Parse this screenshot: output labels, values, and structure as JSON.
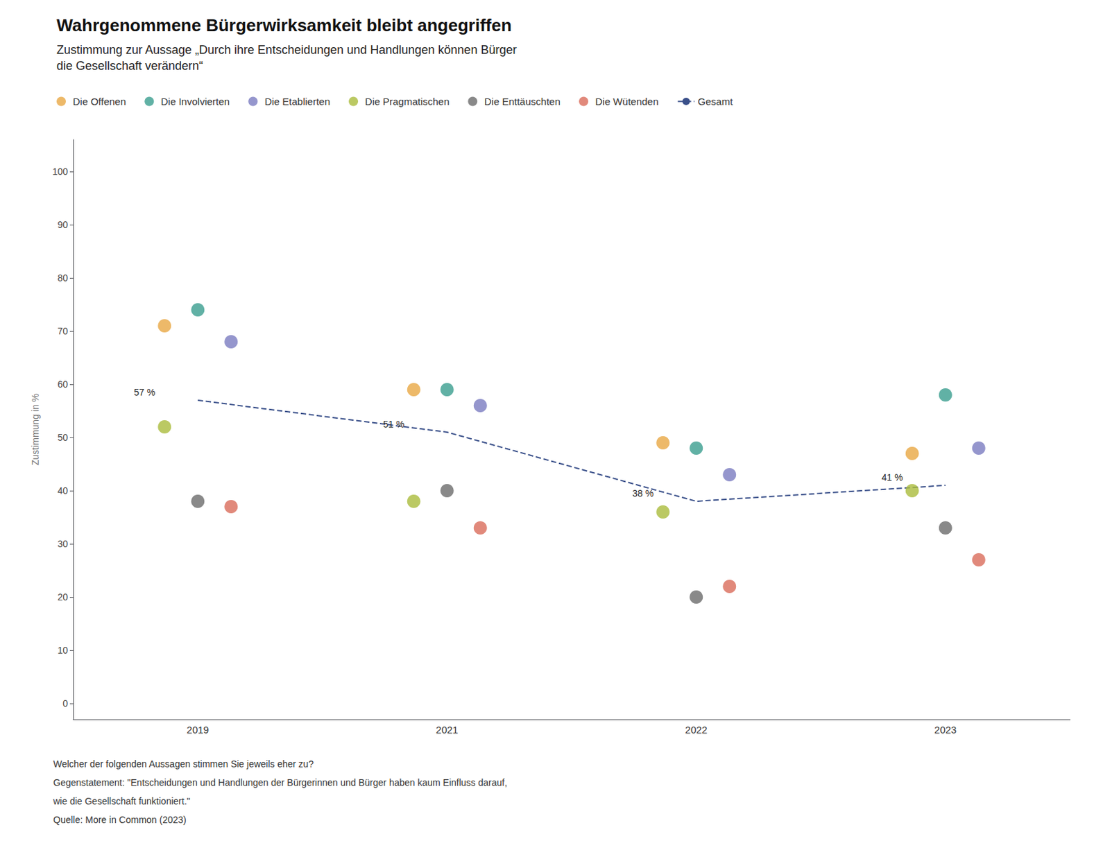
{
  "chart_data": {
    "type": "scatter",
    "title": "Wahrgenommene Bürgerwirksamkeit bleibt angegriffen",
    "subtitle": "Zustimmung zur Aussage „Durch ihre Entscheidungen und Handlungen können Bürger\ndie Gesellschaft verändern“",
    "categories": [
      "2019",
      "2021",
      "2022",
      "2023"
    ],
    "series": [
      {
        "name": "Die Offenen",
        "type": "scatter",
        "marker": "circle",
        "color": "#E8A844",
        "values": [
          71,
          59,
          49,
          47
        ]
      },
      {
        "name": "Die Involvierten",
        "type": "scatter",
        "marker": "circle",
        "color": "#3A9E8F",
        "values": [
          74,
          59,
          48,
          58
        ]
      },
      {
        "name": "Die Etablierten",
        "type": "scatter",
        "marker": "circle",
        "color": "#7B7CC1",
        "values": [
          68,
          56,
          43,
          48
        ]
      },
      {
        "name": "Die Pragmatischen",
        "type": "scatter",
        "marker": "circle",
        "color": "#AABC3C",
        "values": [
          52,
          38,
          36,
          40
        ]
      },
      {
        "name": "Die Enttäuschten",
        "type": "scatter",
        "marker": "circle",
        "color": "#6B6B6B",
        "values": [
          38,
          40,
          20,
          33
        ]
      },
      {
        "name": "Die Wütenden",
        "type": "scatter",
        "marker": "circle",
        "color": "#D96B5A",
        "values": [
          37,
          33,
          22,
          27
        ]
      },
      {
        "name": "Gesamt",
        "type": "line",
        "line_style": "dashed",
        "color": "#3A508A",
        "values": [
          57,
          51,
          38,
          41
        ],
        "value_labels": [
          "57 %",
          "51 %",
          "38 %",
          "41 %"
        ],
        "data_labels": true
      }
    ],
    "ylabel": "Zustimmung in %",
    "ylim": [
      -3,
      106
    ],
    "yticks": [
      0,
      10,
      20,
      30,
      40,
      50,
      60,
      70,
      80,
      90,
      100
    ],
    "grid": false,
    "legend": "top-left",
    "annotations": [
      "Welcher der folgenden Aussagen stimmen Sie jeweils eher zu?",
      "Gegenstatement: \"Entscheidungen und Handlungen der Bürgerinnen und Bürger haben kaum Einfluss darauf,",
      "wie die Gesellschaft funktioniert.\"",
      "Quelle: More in Common (2023)"
    ]
  }
}
